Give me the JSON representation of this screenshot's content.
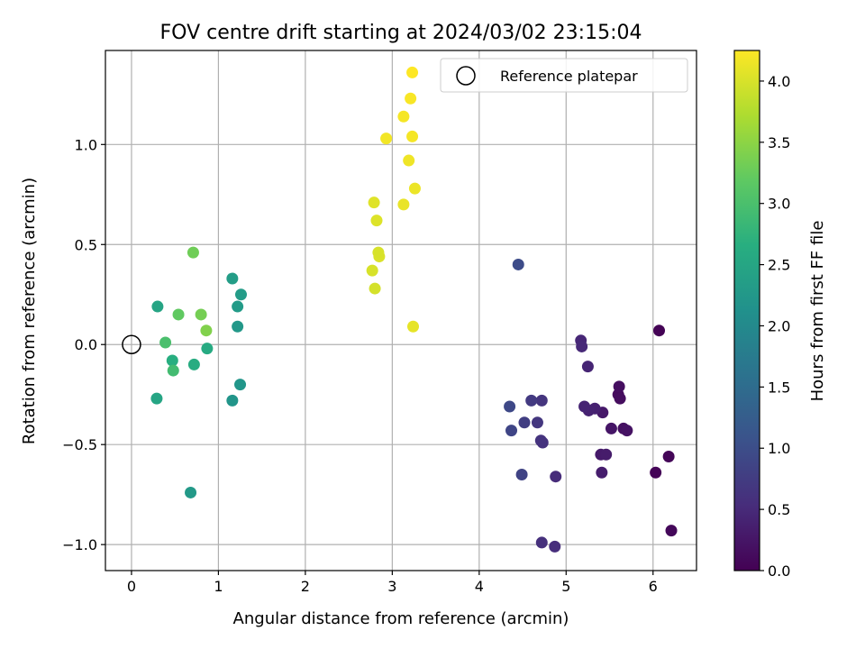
{
  "chart_data": {
    "type": "scatter",
    "title": "FOV centre drift starting at 2024/03/02 23:15:04",
    "xlabel": "Angular distance from reference (arcmin)",
    "ylabel": "Rotation from reference (arcmin)",
    "xlim": [
      -0.3,
      6.5
    ],
    "ylim": [
      -1.13,
      1.47
    ],
    "xticks": [
      0,
      1,
      2,
      3,
      4,
      5,
      6
    ],
    "xtick_labels": [
      "0",
      "1",
      "2",
      "3",
      "4",
      "5",
      "6"
    ],
    "yticks": [
      -1.0,
      -0.5,
      0.0,
      0.5,
      1.0
    ],
    "ytick_labels": [
      "−1.0",
      "−0.5",
      "0.0",
      "0.5",
      "1.0"
    ],
    "grid": true,
    "legend": {
      "placement": "top-right",
      "entries": [
        "Reference platepar"
      ]
    },
    "reference_point": {
      "x": 0,
      "y": 0
    },
    "colorbar": {
      "label": "Hours from first FF file",
      "range": [
        0.0,
        4.25
      ],
      "ticks": [
        0.0,
        0.5,
        1.0,
        1.5,
        2.0,
        2.5,
        3.0,
        3.5,
        4.0
      ],
      "tick_labels": [
        "0.0",
        "0.5",
        "1.0",
        "1.5",
        "2.0",
        "2.5",
        "3.0",
        "3.5",
        "4.0"
      ],
      "colormap": "viridis"
    },
    "points": [
      {
        "x": 6.07,
        "y": 0.07,
        "c": 0.02
      },
      {
        "x": 6.03,
        "y": -0.64,
        "c": 0.04
      },
      {
        "x": 6.18,
        "y": -0.56,
        "c": 0.06
      },
      {
        "x": 6.21,
        "y": -0.93,
        "c": 0.08
      },
      {
        "x": 5.6,
        "y": -0.25,
        "c": 0.12
      },
      {
        "x": 5.62,
        "y": -0.27,
        "c": 0.14
      },
      {
        "x": 5.61,
        "y": -0.21,
        "c": 0.16
      },
      {
        "x": 5.66,
        "y": -0.42,
        "c": 0.18
      },
      {
        "x": 5.7,
        "y": -0.43,
        "c": 0.2
      },
      {
        "x": 5.52,
        "y": -0.42,
        "c": 0.24
      },
      {
        "x": 5.42,
        "y": -0.34,
        "c": 0.28
      },
      {
        "x": 5.4,
        "y": -0.55,
        "c": 0.3
      },
      {
        "x": 5.46,
        "y": -0.55,
        "c": 0.32
      },
      {
        "x": 5.41,
        "y": -0.64,
        "c": 0.34
      },
      {
        "x": 5.33,
        "y": -0.32,
        "c": 0.38
      },
      {
        "x": 5.26,
        "y": -0.33,
        "c": 0.4
      },
      {
        "x": 5.21,
        "y": -0.31,
        "c": 0.42
      },
      {
        "x": 5.25,
        "y": -0.11,
        "c": 0.44
      },
      {
        "x": 5.17,
        "y": 0.02,
        "c": 0.46
      },
      {
        "x": 5.18,
        "y": -0.01,
        "c": 0.48
      },
      {
        "x": 4.88,
        "y": -0.66,
        "c": 0.52
      },
      {
        "x": 4.87,
        "y": -1.01,
        "c": 0.55
      },
      {
        "x": 4.72,
        "y": -0.99,
        "c": 0.58
      },
      {
        "x": 4.73,
        "y": -0.49,
        "c": 0.6
      },
      {
        "x": 4.71,
        "y": -0.48,
        "c": 0.62
      },
      {
        "x": 4.72,
        "y": -0.28,
        "c": 0.64
      },
      {
        "x": 4.67,
        "y": -0.39,
        "c": 0.68
      },
      {
        "x": 4.6,
        "y": -0.28,
        "c": 0.72
      },
      {
        "x": 4.52,
        "y": -0.39,
        "c": 0.78
      },
      {
        "x": 4.49,
        "y": -0.65,
        "c": 0.84
      },
      {
        "x": 4.37,
        "y": -0.43,
        "c": 0.88
      },
      {
        "x": 4.35,
        "y": -0.31,
        "c": 0.92
      },
      {
        "x": 4.45,
        "y": 0.4,
        "c": 0.98
      },
      {
        "x": 0.68,
        "y": -0.74,
        "c": 2.28
      },
      {
        "x": 1.25,
        "y": -0.2,
        "c": 2.22
      },
      {
        "x": 1.16,
        "y": -0.28,
        "c": 2.2
      },
      {
        "x": 1.22,
        "y": 0.09,
        "c": 2.26
      },
      {
        "x": 1.22,
        "y": 0.19,
        "c": 2.3
      },
      {
        "x": 1.26,
        "y": 0.25,
        "c": 2.32
      },
      {
        "x": 1.16,
        "y": 0.33,
        "c": 2.34
      },
      {
        "x": 0.3,
        "y": 0.19,
        "c": 2.48
      },
      {
        "x": 0.29,
        "y": -0.27,
        "c": 2.5
      },
      {
        "x": 0.87,
        "y": -0.02,
        "c": 2.58
      },
      {
        "x": 0.72,
        "y": -0.1,
        "c": 2.62
      },
      {
        "x": 0.47,
        "y": -0.08,
        "c": 2.66
      },
      {
        "x": 0.48,
        "y": -0.13,
        "c": 2.92
      },
      {
        "x": 0.39,
        "y": 0.01,
        "c": 3.0
      },
      {
        "x": 0.54,
        "y": 0.15,
        "c": 3.2
      },
      {
        "x": 0.71,
        "y": 0.46,
        "c": 3.3
      },
      {
        "x": 0.8,
        "y": 0.15,
        "c": 3.34
      },
      {
        "x": 0.86,
        "y": 0.07,
        "c": 3.42
      },
      {
        "x": 3.24,
        "y": 0.09,
        "c": 4.1
      },
      {
        "x": 2.8,
        "y": 0.28,
        "c": 3.98
      },
      {
        "x": 2.77,
        "y": 0.37,
        "c": 4.0
      },
      {
        "x": 2.85,
        "y": 0.44,
        "c": 4.02
      },
      {
        "x": 2.84,
        "y": 0.46,
        "c": 4.0
      },
      {
        "x": 2.82,
        "y": 0.62,
        "c": 4.04
      },
      {
        "x": 2.79,
        "y": 0.71,
        "c": 4.05
      },
      {
        "x": 3.13,
        "y": 0.7,
        "c": 4.12
      },
      {
        "x": 3.26,
        "y": 0.78,
        "c": 4.14
      },
      {
        "x": 3.19,
        "y": 0.92,
        "c": 4.16
      },
      {
        "x": 2.93,
        "y": 1.03,
        "c": 4.18
      },
      {
        "x": 3.23,
        "y": 1.04,
        "c": 4.2
      },
      {
        "x": 3.13,
        "y": 1.14,
        "c": 4.2
      },
      {
        "x": 3.21,
        "y": 1.23,
        "c": 4.22
      },
      {
        "x": 3.23,
        "y": 1.36,
        "c": 4.25
      }
    ]
  }
}
